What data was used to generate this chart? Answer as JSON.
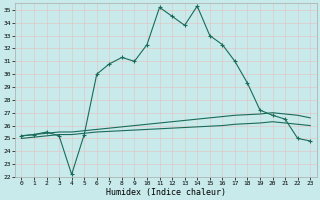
{
  "title": "",
  "xlabel": "Humidex (Indice chaleur)",
  "bg_color": "#c8eaea",
  "grid_color": "#b0d8d8",
  "line_color": "#1a6b5a",
  "ylim": [
    22,
    35.5
  ],
  "xlim": [
    -0.5,
    23.5
  ],
  "yticks": [
    22,
    23,
    24,
    25,
    26,
    27,
    28,
    29,
    30,
    31,
    32,
    33,
    34,
    35
  ],
  "xticks": [
    0,
    1,
    2,
    3,
    4,
    5,
    6,
    7,
    8,
    9,
    10,
    11,
    12,
    13,
    14,
    15,
    16,
    17,
    18,
    19,
    20,
    21,
    22,
    23
  ],
  "series1": [
    25.2,
    25.3,
    25.5,
    25.2,
    22.2,
    25.3,
    30.0,
    30.8,
    31.3,
    31.0,
    32.3,
    35.2,
    34.5,
    33.8,
    35.3,
    33.0,
    32.3,
    31.0,
    29.3,
    27.2,
    26.8,
    26.5,
    25.0,
    24.8
  ],
  "series2": [
    25.2,
    25.3,
    25.4,
    25.5,
    25.5,
    25.6,
    25.7,
    25.8,
    25.9,
    26.0,
    26.1,
    26.2,
    26.3,
    26.4,
    26.5,
    26.6,
    26.7,
    26.8,
    26.85,
    26.9,
    27.0,
    26.9,
    26.8,
    26.6
  ],
  "series3": [
    25.0,
    25.1,
    25.2,
    25.3,
    25.3,
    25.4,
    25.5,
    25.55,
    25.6,
    25.65,
    25.7,
    25.75,
    25.8,
    25.85,
    25.9,
    25.95,
    26.0,
    26.1,
    26.15,
    26.2,
    26.3,
    26.2,
    26.1,
    26.0
  ]
}
